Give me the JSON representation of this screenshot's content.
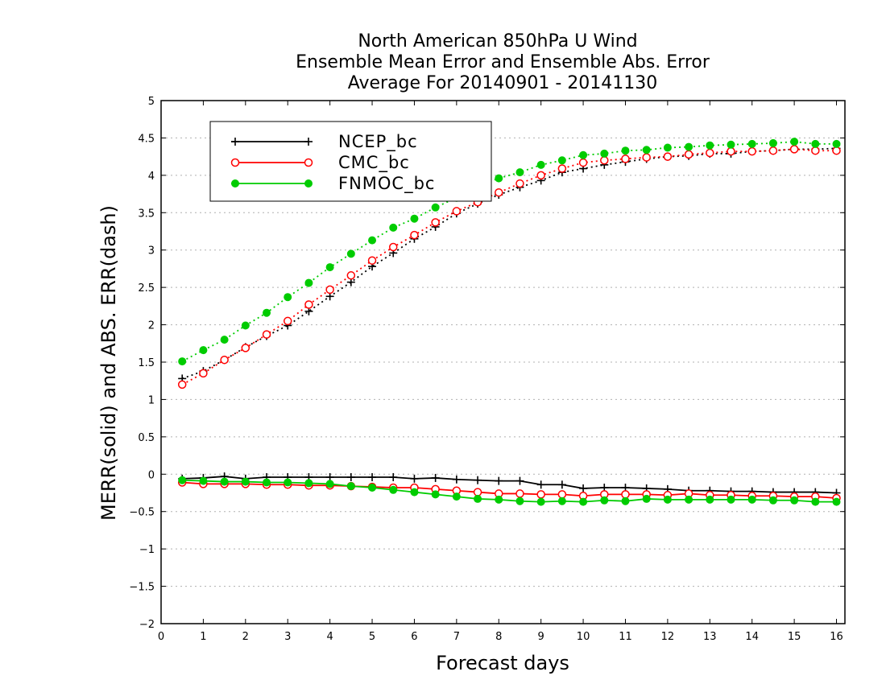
{
  "chart_data": {
    "type": "line",
    "title": [
      "North American 850hPa U Wind",
      "Ensemble Mean Error and Ensemble Abs. Error",
      "Average For 20140901 - 20141130"
    ],
    "xlabel": "Forecast days",
    "ylabel": "MERR(solid) and ABS. ERR(dash)",
    "xlim": [
      0,
      16.2
    ],
    "ylim": [
      -2,
      5
    ],
    "xticks": [
      0,
      1,
      2,
      3,
      4,
      5,
      6,
      7,
      8,
      9,
      10,
      11,
      12,
      13,
      14,
      15,
      16
    ],
    "yticks": [
      -2,
      -1.5,
      -1,
      -0.5,
      0,
      0.5,
      1,
      1.5,
      2,
      2.5,
      3,
      3.5,
      4,
      4.5,
      5
    ],
    "ytick_labels": [
      "−2",
      "−1.5",
      "−1",
      "−0.5",
      "0",
      "0.5",
      "1",
      "1.5",
      "2",
      "2.5",
      "3",
      "3.5",
      "4",
      "4.5",
      "5"
    ],
    "grid": "horizontal dotted",
    "legend_position": "top-left",
    "x": [
      0.5,
      1,
      1.5,
      2,
      2.5,
      3,
      3.5,
      4,
      4.5,
      5,
      5.5,
      6,
      6.5,
      7,
      7.5,
      8,
      8.5,
      9,
      9.5,
      10,
      10.5,
      11,
      11.5,
      12,
      12.5,
      13,
      13.5,
      14,
      14.5,
      15,
      15.5,
      16
    ],
    "series": [
      {
        "name": "NCEP_bc",
        "color": "#000000",
        "marker": "plus",
        "merr": [
          -0.06,
          -0.05,
          -0.03,
          -0.06,
          -0.04,
          -0.04,
          -0.04,
          -0.04,
          -0.04,
          -0.04,
          -0.04,
          -0.06,
          -0.05,
          -0.07,
          -0.08,
          -0.09,
          -0.09,
          -0.14,
          -0.14,
          -0.19,
          -0.18,
          -0.18,
          -0.19,
          -0.2,
          -0.22,
          -0.22,
          -0.23,
          -0.23,
          -0.24,
          -0.24,
          -0.24,
          -0.25
        ],
        "abs_err": [
          1.28,
          1.38,
          1.53,
          1.7,
          1.85,
          1.99,
          2.18,
          2.38,
          2.57,
          2.78,
          2.96,
          3.15,
          3.31,
          3.49,
          3.62,
          3.74,
          3.84,
          3.93,
          4.04,
          4.09,
          4.14,
          4.18,
          4.22,
          4.25,
          4.26,
          4.29,
          4.29,
          4.32,
          4.33,
          4.35,
          4.35,
          4.36
        ]
      },
      {
        "name": "CMC_bc",
        "color": "#ff0000",
        "marker": "open-circle",
        "merr": [
          -0.11,
          -0.13,
          -0.13,
          -0.13,
          -0.14,
          -0.14,
          -0.15,
          -0.15,
          -0.16,
          -0.17,
          -0.18,
          -0.18,
          -0.2,
          -0.22,
          -0.24,
          -0.26,
          -0.26,
          -0.27,
          -0.27,
          -0.29,
          -0.27,
          -0.27,
          -0.27,
          -0.28,
          -0.26,
          -0.28,
          -0.28,
          -0.29,
          -0.29,
          -0.3,
          -0.3,
          -0.32
        ],
        "abs_err": [
          1.2,
          1.35,
          1.53,
          1.69,
          1.87,
          2.05,
          2.27,
          2.47,
          2.66,
          2.86,
          3.04,
          3.2,
          3.37,
          3.52,
          3.64,
          3.77,
          3.89,
          4.0,
          4.09,
          4.17,
          4.2,
          4.22,
          4.24,
          4.25,
          4.28,
          4.3,
          4.32,
          4.32,
          4.33,
          4.35,
          4.33,
          4.33
        ]
      },
      {
        "name": "FNMOC_bc",
        "color": "#00cc00",
        "marker": "filled-circle",
        "merr": [
          -0.08,
          -0.09,
          -0.1,
          -0.1,
          -0.11,
          -0.11,
          -0.12,
          -0.13,
          -0.16,
          -0.18,
          -0.21,
          -0.24,
          -0.27,
          -0.3,
          -0.33,
          -0.34,
          -0.36,
          -0.37,
          -0.36,
          -0.37,
          -0.35,
          -0.36,
          -0.33,
          -0.34,
          -0.34,
          -0.34,
          -0.34,
          -0.34,
          -0.35,
          -0.35,
          -0.37,
          -0.37
        ],
        "abs_err": [
          1.51,
          1.66,
          1.8,
          1.99,
          2.16,
          2.37,
          2.56,
          2.77,
          2.95,
          3.13,
          3.3,
          3.42,
          3.57,
          3.7,
          3.86,
          3.96,
          4.04,
          4.14,
          4.2,
          4.27,
          4.29,
          4.33,
          4.34,
          4.37,
          4.38,
          4.4,
          4.41,
          4.42,
          4.43,
          4.45,
          4.42,
          4.42
        ]
      }
    ]
  }
}
